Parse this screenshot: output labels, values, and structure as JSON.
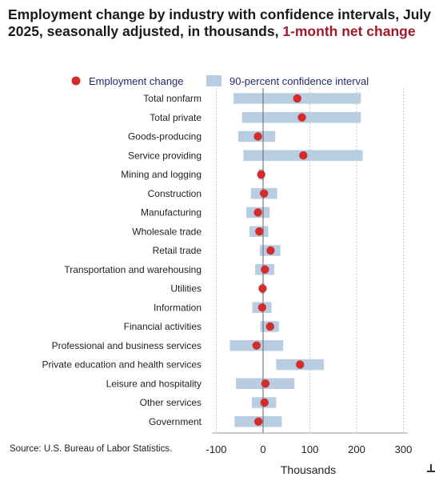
{
  "title": {
    "main": "Employment change by industry with confidence intervals, July 2025, seasonally adjusted, in thousands, ",
    "accent": "1-month net change"
  },
  "source": "Source: U.S. Bureau of Labor Statistics.",
  "colors": {
    "point": "#d42b2b",
    "interval": "#b8cde2",
    "accent_text": "#a0192b",
    "zero_line": "#666666",
    "grid": "#bbbbbb"
  },
  "chart_data": {
    "type": "scatter",
    "title": "Employment change by industry with confidence intervals, July 2025, seasonally adjusted, in thousands, 1-month net change",
    "xlabel": "Thousands",
    "xlim": [
      -110,
      310
    ],
    "xticks": [
      -100,
      0,
      100,
      200,
      300
    ],
    "grid": "vertical dotted",
    "legend_position": "top",
    "legend": [
      "Employment change",
      "90-percent confidence interval"
    ],
    "categories": [
      "Total nonfarm",
      "Total private",
      "Goods-producing",
      "Service providing",
      "Mining and logging",
      "Construction",
      "Manufacturing",
      "Wholesale trade",
      "Retail trade",
      "Transportation and warehousing",
      "Utilities",
      "Information",
      "Financial activities",
      "Professional and business services",
      "Private education and health services",
      "Leisure and hospitality",
      "Other services",
      "Government"
    ],
    "series": [
      {
        "name": "Employment change",
        "values": [
          73,
          83,
          -11,
          86,
          -4,
          2,
          -11,
          -8,
          16,
          4,
          -1,
          -2,
          15,
          -14,
          79,
          5,
          3,
          -10
        ]
      },
      {
        "name": "90-percent confidence interval",
        "lower": [
          -63,
          -45,
          -53,
          -42,
          -10,
          -26,
          -36,
          -29,
          -7,
          -17,
          -5,
          -23,
          -6,
          -71,
          28,
          -58,
          -24,
          -61
        ],
        "upper": [
          209,
          209,
          26,
          213,
          2,
          30,
          14,
          11,
          37,
          24,
          3,
          18,
          34,
          43,
          130,
          67,
          28,
          40
        ]
      }
    ]
  }
}
